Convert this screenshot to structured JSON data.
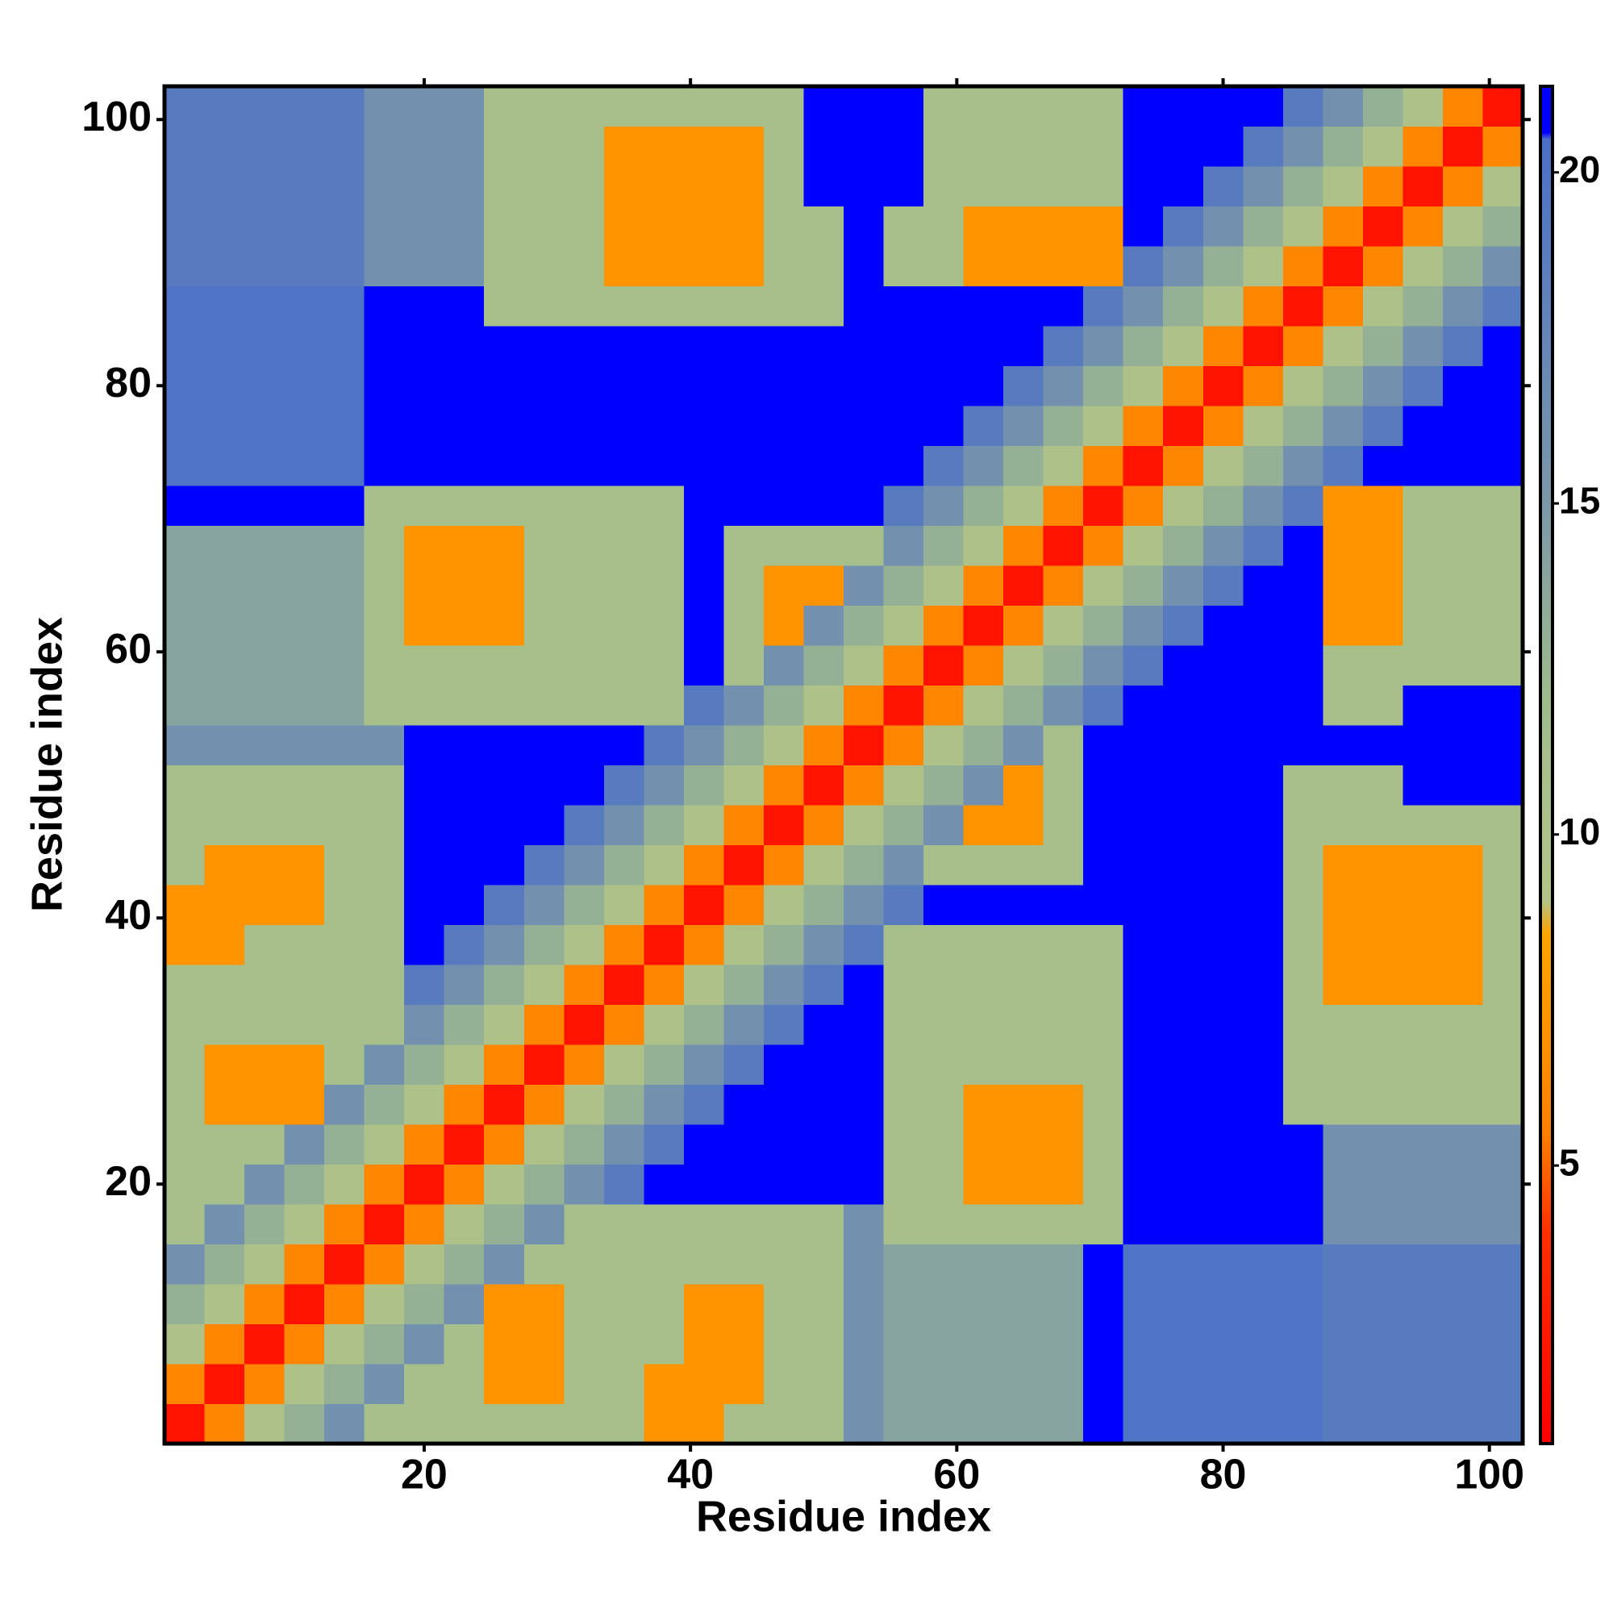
{
  "chart_data": {
    "type": "heatmap",
    "x_label": "Residue index",
    "y_label": "Residue index",
    "x": [
      2,
      5,
      8,
      11,
      14,
      17,
      20,
      23,
      26,
      29,
      32,
      35,
      38,
      41,
      44,
      47,
      50,
      53,
      56,
      59,
      62,
      65,
      68,
      71,
      74,
      77,
      80,
      83,
      86,
      89,
      92,
      95,
      98,
      101
    ],
    "y": [
      2,
      5,
      8,
      11,
      14,
      17,
      20,
      23,
      26,
      29,
      32,
      35,
      38,
      41,
      44,
      47,
      50,
      53,
      56,
      59,
      62,
      65,
      68,
      71,
      74,
      77,
      80,
      83,
      86,
      89,
      92,
      95,
      98,
      101
    ],
    "z": [
      [
        2,
        6,
        10,
        13,
        16,
        11,
        11,
        11,
        11,
        11,
        11,
        11,
        7,
        7,
        11,
        11,
        11,
        16,
        14,
        14,
        14,
        14,
        14,
        21,
        20,
        20,
        20,
        20,
        20,
        19,
        19,
        19,
        19,
        19
      ],
      [
        6,
        2,
        6,
        10,
        13,
        16,
        11,
        11,
        7,
        7,
        11,
        11,
        7,
        7,
        7,
        11,
        11,
        16,
        14,
        14,
        14,
        14,
        14,
        21,
        20,
        20,
        20,
        20,
        20,
        19,
        19,
        19,
        19,
        19
      ],
      [
        10,
        6,
        2,
        6,
        10,
        13,
        16,
        11,
        7,
        7,
        11,
        11,
        11,
        7,
        7,
        11,
        11,
        16,
        14,
        14,
        14,
        14,
        14,
        21,
        20,
        20,
        20,
        20,
        20,
        19,
        19,
        19,
        19,
        19
      ],
      [
        13,
        10,
        6,
        2,
        6,
        10,
        13,
        16,
        7,
        7,
        11,
        11,
        11,
        7,
        7,
        11,
        11,
        16,
        14,
        14,
        14,
        14,
        14,
        21,
        20,
        20,
        20,
        20,
        20,
        19,
        19,
        19,
        19,
        19
      ],
      [
        16,
        13,
        10,
        6,
        2,
        6,
        10,
        13,
        16,
        11,
        11,
        11,
        11,
        11,
        11,
        11,
        11,
        16,
        14,
        14,
        14,
        14,
        14,
        21,
        20,
        20,
        20,
        20,
        20,
        19,
        19,
        19,
        19,
        19
      ],
      [
        11,
        16,
        13,
        10,
        6,
        2,
        6,
        10,
        13,
        16,
        11,
        11,
        11,
        11,
        11,
        11,
        11,
        16,
        11,
        11,
        11,
        11,
        11,
        11,
        21,
        21,
        21,
        21,
        21,
        16,
        16,
        16,
        16,
        16
      ],
      [
        11,
        11,
        16,
        13,
        10,
        6,
        2,
        6,
        10,
        13,
        16,
        19,
        21,
        21,
        21,
        21,
        21,
        21,
        11,
        11,
        7,
        7,
        7,
        11,
        21,
        21,
        21,
        21,
        21,
        16,
        16,
        16,
        16,
        16
      ],
      [
        11,
        11,
        11,
        16,
        13,
        10,
        6,
        2,
        6,
        10,
        13,
        16,
        19,
        21,
        21,
        21,
        21,
        21,
        11,
        11,
        7,
        7,
        7,
        11,
        21,
        21,
        21,
        21,
        21,
        16,
        16,
        16,
        16,
        16
      ],
      [
        11,
        7,
        7,
        7,
        16,
        13,
        10,
        6,
        2,
        6,
        10,
        13,
        16,
        19,
        21,
        21,
        21,
        21,
        11,
        11,
        7,
        7,
        7,
        11,
        21,
        21,
        21,
        21,
        11,
        11,
        11,
        11,
        11,
        11
      ],
      [
        11,
        7,
        7,
        7,
        11,
        16,
        13,
        10,
        6,
        2,
        6,
        10,
        13,
        16,
        19,
        21,
        21,
        21,
        11,
        11,
        11,
        11,
        11,
        11,
        21,
        21,
        21,
        21,
        11,
        11,
        11,
        11,
        11,
        11
      ],
      [
        11,
        11,
        11,
        11,
        11,
        11,
        16,
        13,
        10,
        6,
        2,
        6,
        10,
        13,
        16,
        19,
        21,
        21,
        11,
        11,
        11,
        11,
        11,
        11,
        21,
        21,
        21,
        21,
        11,
        11,
        11,
        11,
        11,
        11
      ],
      [
        11,
        11,
        11,
        11,
        11,
        11,
        19,
        16,
        13,
        10,
        6,
        2,
        6,
        10,
        13,
        16,
        19,
        21,
        11,
        11,
        11,
        11,
        11,
        11,
        21,
        21,
        21,
        21,
        11,
        7,
        7,
        7,
        7,
        11
      ],
      [
        7,
        7,
        11,
        11,
        11,
        11,
        21,
        19,
        16,
        13,
        10,
        6,
        2,
        6,
        10,
        13,
        16,
        19,
        11,
        11,
        11,
        11,
        11,
        11,
        21,
        21,
        21,
        21,
        11,
        7,
        7,
        7,
        7,
        11
      ],
      [
        7,
        7,
        7,
        7,
        11,
        11,
        21,
        21,
        19,
        16,
        13,
        10,
        6,
        2,
        6,
        10,
        13,
        16,
        19,
        21,
        21,
        21,
        21,
        21,
        21,
        21,
        21,
        21,
        11,
        7,
        7,
        7,
        7,
        11
      ],
      [
        11,
        7,
        7,
        7,
        11,
        11,
        21,
        21,
        21,
        19,
        16,
        13,
        10,
        6,
        2,
        6,
        10,
        13,
        16,
        11,
        11,
        11,
        11,
        21,
        21,
        21,
        21,
        21,
        11,
        7,
        7,
        7,
        7,
        11
      ],
      [
        11,
        11,
        11,
        11,
        11,
        11,
        21,
        21,
        21,
        21,
        19,
        16,
        13,
        10,
        6,
        2,
        6,
        10,
        13,
        16,
        7,
        7,
        11,
        21,
        21,
        21,
        21,
        21,
        11,
        11,
        11,
        11,
        11,
        11
      ],
      [
        11,
        11,
        11,
        11,
        11,
        11,
        21,
        21,
        21,
        21,
        21,
        19,
        16,
        13,
        10,
        6,
        2,
        6,
        10,
        13,
        16,
        7,
        11,
        21,
        21,
        21,
        21,
        21,
        11,
        11,
        11,
        21,
        21,
        21
      ],
      [
        16,
        16,
        16,
        16,
        16,
        16,
        21,
        21,
        21,
        21,
        21,
        21,
        19,
        16,
        13,
        10,
        6,
        2,
        6,
        10,
        13,
        16,
        11,
        21,
        21,
        21,
        21,
        21,
        21,
        21,
        21,
        21,
        21,
        21
      ],
      [
        14,
        14,
        14,
        14,
        14,
        11,
        11,
        11,
        11,
        11,
        11,
        11,
        11,
        19,
        16,
        13,
        10,
        6,
        2,
        6,
        10,
        13,
        16,
        19,
        21,
        21,
        21,
        21,
        21,
        11,
        11,
        21,
        21,
        21
      ],
      [
        14,
        14,
        14,
        14,
        14,
        11,
        11,
        11,
        11,
        11,
        11,
        11,
        11,
        21,
        11,
        16,
        13,
        10,
        6,
        2,
        6,
        10,
        13,
        16,
        19,
        21,
        21,
        21,
        21,
        11,
        11,
        11,
        11,
        11
      ],
      [
        14,
        14,
        14,
        14,
        14,
        11,
        7,
        7,
        7,
        11,
        11,
        11,
        11,
        21,
        11,
        7,
        16,
        13,
        10,
        6,
        2,
        6,
        10,
        13,
        16,
        19,
        21,
        21,
        21,
        7,
        7,
        11,
        11,
        11
      ],
      [
        14,
        14,
        14,
        14,
        14,
        11,
        7,
        7,
        7,
        11,
        11,
        11,
        11,
        21,
        11,
        7,
        7,
        16,
        13,
        10,
        6,
        2,
        6,
        10,
        13,
        16,
        19,
        21,
        21,
        7,
        7,
        11,
        11,
        11
      ],
      [
        14,
        14,
        14,
        14,
        14,
        11,
        7,
        7,
        7,
        11,
        11,
        11,
        11,
        21,
        11,
        11,
        11,
        11,
        16,
        13,
        10,
        6,
        2,
        6,
        10,
        13,
        16,
        19,
        21,
        7,
        7,
        11,
        11,
        11
      ],
      [
        21,
        21,
        21,
        21,
        21,
        11,
        11,
        11,
        11,
        11,
        11,
        11,
        11,
        21,
        21,
        21,
        21,
        21,
        19,
        16,
        13,
        10,
        6,
        2,
        6,
        10,
        13,
        16,
        19,
        7,
        7,
        11,
        11,
        11
      ],
      [
        20,
        20,
        20,
        20,
        20,
        21,
        21,
        21,
        21,
        21,
        21,
        21,
        21,
        21,
        21,
        21,
        21,
        21,
        21,
        19,
        16,
        13,
        10,
        6,
        2,
        6,
        10,
        13,
        16,
        19,
        21,
        21,
        21,
        21
      ],
      [
        20,
        20,
        20,
        20,
        20,
        21,
        21,
        21,
        21,
        21,
        21,
        21,
        21,
        21,
        21,
        21,
        21,
        21,
        21,
        21,
        19,
        16,
        13,
        10,
        6,
        2,
        6,
        10,
        13,
        16,
        19,
        21,
        21,
        21
      ],
      [
        20,
        20,
        20,
        20,
        20,
        21,
        21,
        21,
        21,
        21,
        21,
        21,
        21,
        21,
        21,
        21,
        21,
        21,
        21,
        21,
        21,
        19,
        16,
        13,
        10,
        6,
        2,
        6,
        10,
        13,
        16,
        19,
        21,
        21
      ],
      [
        20,
        20,
        20,
        20,
        20,
        21,
        21,
        21,
        21,
        21,
        21,
        21,
        21,
        21,
        21,
        21,
        21,
        21,
        21,
        21,
        21,
        21,
        19,
        16,
        13,
        10,
        6,
        2,
        6,
        10,
        13,
        16,
        19,
        21
      ],
      [
        20,
        20,
        20,
        20,
        20,
        21,
        21,
        21,
        11,
        11,
        11,
        11,
        11,
        11,
        11,
        11,
        11,
        21,
        21,
        21,
        21,
        21,
        21,
        19,
        16,
        13,
        10,
        6,
        2,
        6,
        10,
        13,
        16,
        19
      ],
      [
        19,
        19,
        19,
        19,
        19,
        16,
        16,
        16,
        11,
        11,
        11,
        7,
        7,
        7,
        7,
        11,
        11,
        21,
        11,
        11,
        7,
        7,
        7,
        7,
        19,
        16,
        13,
        10,
        6,
        2,
        6,
        10,
        13,
        16
      ],
      [
        19,
        19,
        19,
        19,
        19,
        16,
        16,
        16,
        11,
        11,
        11,
        7,
        7,
        7,
        7,
        11,
        11,
        21,
        11,
        11,
        7,
        7,
        7,
        7,
        21,
        19,
        16,
        13,
        10,
        6,
        2,
        6,
        10,
        13
      ],
      [
        19,
        19,
        19,
        19,
        19,
        16,
        16,
        16,
        11,
        11,
        11,
        7,
        7,
        7,
        7,
        11,
        21,
        21,
        21,
        11,
        11,
        11,
        11,
        11,
        21,
        21,
        19,
        16,
        13,
        10,
        6,
        2,
        6,
        10
      ],
      [
        19,
        19,
        19,
        19,
        19,
        16,
        16,
        16,
        11,
        11,
        11,
        7,
        7,
        7,
        7,
        11,
        21,
        21,
        21,
        11,
        11,
        11,
        11,
        11,
        21,
        21,
        21,
        19,
        16,
        13,
        10,
        6,
        2,
        6
      ],
      [
        19,
        19,
        19,
        19,
        19,
        16,
        16,
        16,
        11,
        11,
        11,
        11,
        11,
        11,
        11,
        11,
        21,
        21,
        21,
        11,
        11,
        11,
        11,
        11,
        21,
        21,
        21,
        21,
        19,
        16,
        13,
        10,
        6,
        2
      ]
    ],
    "xlim": [
      0.5,
      102.5
    ],
    "ylim": [
      0.5,
      102.5
    ],
    "xticks": [
      20,
      40,
      60,
      80,
      100
    ],
    "yticks": [
      20,
      40,
      60,
      80,
      100
    ],
    "zlim": [
      0.8,
      21.3
    ],
    "zticks": [
      5,
      10,
      15,
      20
    ],
    "colorscale": [
      [
        0.8,
        "#ff0000"
      ],
      [
        4,
        "#ff3000"
      ],
      [
        5.5,
        "#ff8000"
      ],
      [
        8.5,
        "#ffa500"
      ],
      [
        9,
        "#b4c488"
      ],
      [
        12,
        "#a0bc8c"
      ],
      [
        15,
        "#7c98a8"
      ],
      [
        20.5,
        "#4a70c8"
      ],
      [
        20.6,
        "#0000ff"
      ],
      [
        21.3,
        "#0000ff"
      ]
    ],
    "grid": false,
    "colorbar": true
  }
}
